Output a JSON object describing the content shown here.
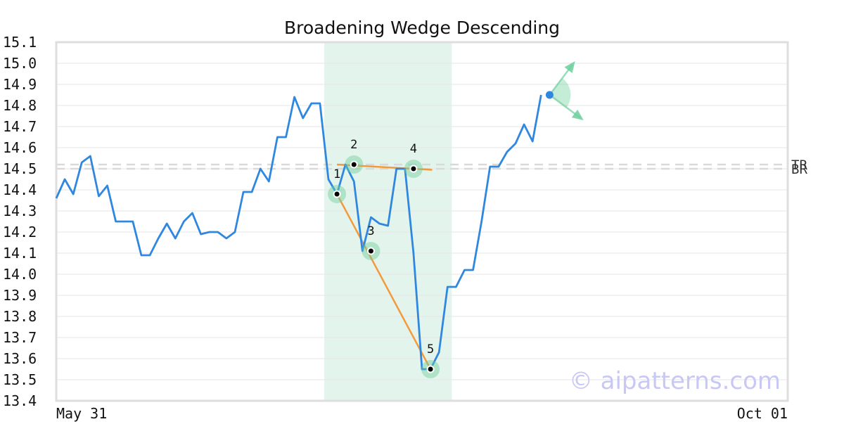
{
  "chart_data": {
    "type": "line",
    "title": "Broadening Wedge Descending",
    "xlabel": "",
    "ylabel": "",
    "ylim": [
      13.4,
      15.1
    ],
    "y_ticks": [
      15.1,
      15.0,
      14.9,
      14.8,
      14.7,
      14.6,
      14.5,
      14.4,
      14.3,
      14.2,
      14.1,
      14.0,
      13.9,
      13.8,
      13.7,
      13.6,
      13.5,
      13.4
    ],
    "x_tick_labels": [
      "May 31",
      "Oct 01"
    ],
    "x_range": [
      0,
      86
    ],
    "grid": true,
    "series": [
      {
        "color": "#2f87e0",
        "values": [
          14.36,
          14.45,
          14.38,
          14.53,
          14.56,
          14.37,
          14.42,
          14.25,
          14.25,
          14.25,
          14.09,
          14.09,
          14.17,
          14.24,
          14.17,
          14.25,
          14.29,
          14.19,
          14.2,
          14.2,
          14.17,
          14.2,
          14.39,
          14.39,
          14.5,
          14.44,
          14.65,
          14.65,
          14.84,
          14.74,
          14.81,
          14.81,
          14.45,
          14.38,
          14.52,
          14.44,
          14.11,
          14.27,
          14.24,
          14.23,
          14.5,
          14.5,
          14.1,
          13.55,
          13.55,
          13.63,
          13.94,
          13.94,
          14.02,
          14.02,
          14.25,
          14.51,
          14.51,
          14.58,
          14.62,
          14.71,
          14.63,
          14.85
        ]
      }
    ],
    "pattern": {
      "shaded_range": [
        31.5,
        46.5
      ],
      "points": [
        {
          "label": "1",
          "x": 33,
          "y": 14.38
        },
        {
          "label": "2",
          "x": 35,
          "y": 14.52
        },
        {
          "label": "3",
          "x": 37,
          "y": 14.11
        },
        {
          "label": "4",
          "x": 42,
          "y": 14.5
        },
        {
          "label": "5",
          "x": 44,
          "y": 13.55
        }
      ],
      "upper_line": [
        [
          33,
          14.52
        ],
        [
          44.2,
          14.495
        ]
      ],
      "lower_line": [
        [
          33,
          14.38
        ],
        [
          44,
          13.55
        ]
      ],
      "breakout_point": {
        "x": 58,
        "y": 14.85
      },
      "projection_up": {
        "x": 61,
        "y": 15.01
      },
      "projection_down": {
        "x": 62,
        "y": 14.73
      },
      "colors": {
        "wedge": "#f39a3c",
        "highlight": "#6ccf9c",
        "shade": "#e3f4ec",
        "dot": "#2f87e0"
      }
    },
    "levels": [
      {
        "label": "TR",
        "y": 14.52
      },
      {
        "label": "BR",
        "y": 14.5
      }
    ],
    "watermark": "© aipatterns.com"
  }
}
